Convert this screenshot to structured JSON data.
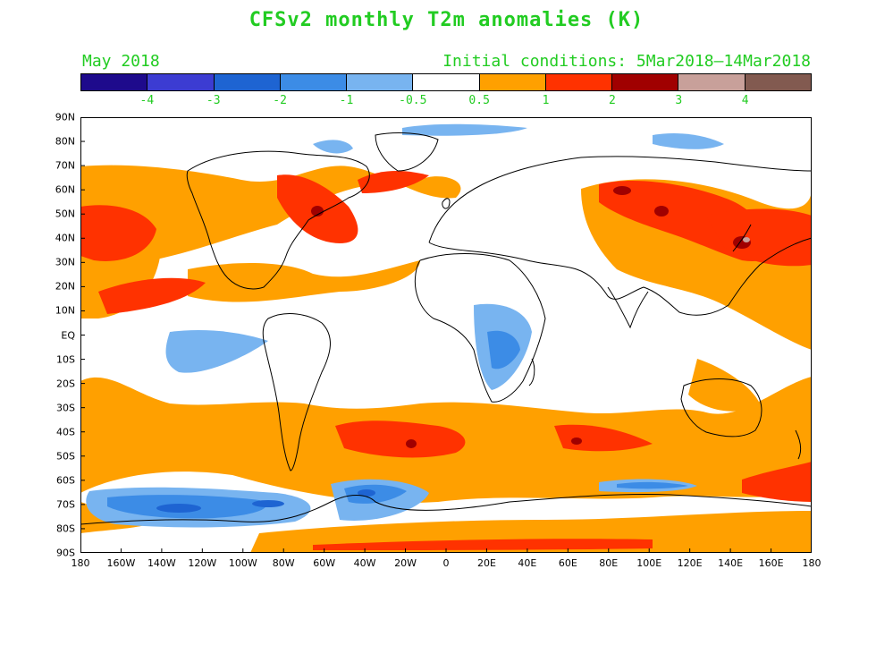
{
  "title": "CFSv2 monthly T2m anomalies (K)",
  "subtitle_left": "May 2018",
  "subtitle_right": "Initial conditions: 5Mar2018–14Mar2018",
  "colorbar": {
    "colors": [
      "#1e0a8c",
      "#3c3cd2",
      "#1e64d2",
      "#3c8ce6",
      "#78b4f0",
      "#ffffff",
      "#ffa000",
      "#ff3200",
      "#a00000",
      "#c8a09a",
      "#825a50"
    ],
    "labels": [
      "-4",
      "-3",
      "-2",
      "-1",
      "-0.5",
      "0.5",
      "1",
      "2",
      "3",
      "4"
    ]
  },
  "axes": {
    "lat_labels": [
      "90N",
      "80N",
      "70N",
      "60N",
      "50N",
      "40N",
      "30N",
      "20N",
      "10N",
      "EQ",
      "10S",
      "20S",
      "30S",
      "40S",
      "50S",
      "60S",
      "70S",
      "80S",
      "90S"
    ],
    "lon_labels": [
      "180",
      "160W",
      "140W",
      "120W",
      "100W",
      "80W",
      "60W",
      "40W",
      "20W",
      "0",
      "20E",
      "40E",
      "60E",
      "80E",
      "100E",
      "120E",
      "140E",
      "160E",
      "180"
    ]
  }
}
